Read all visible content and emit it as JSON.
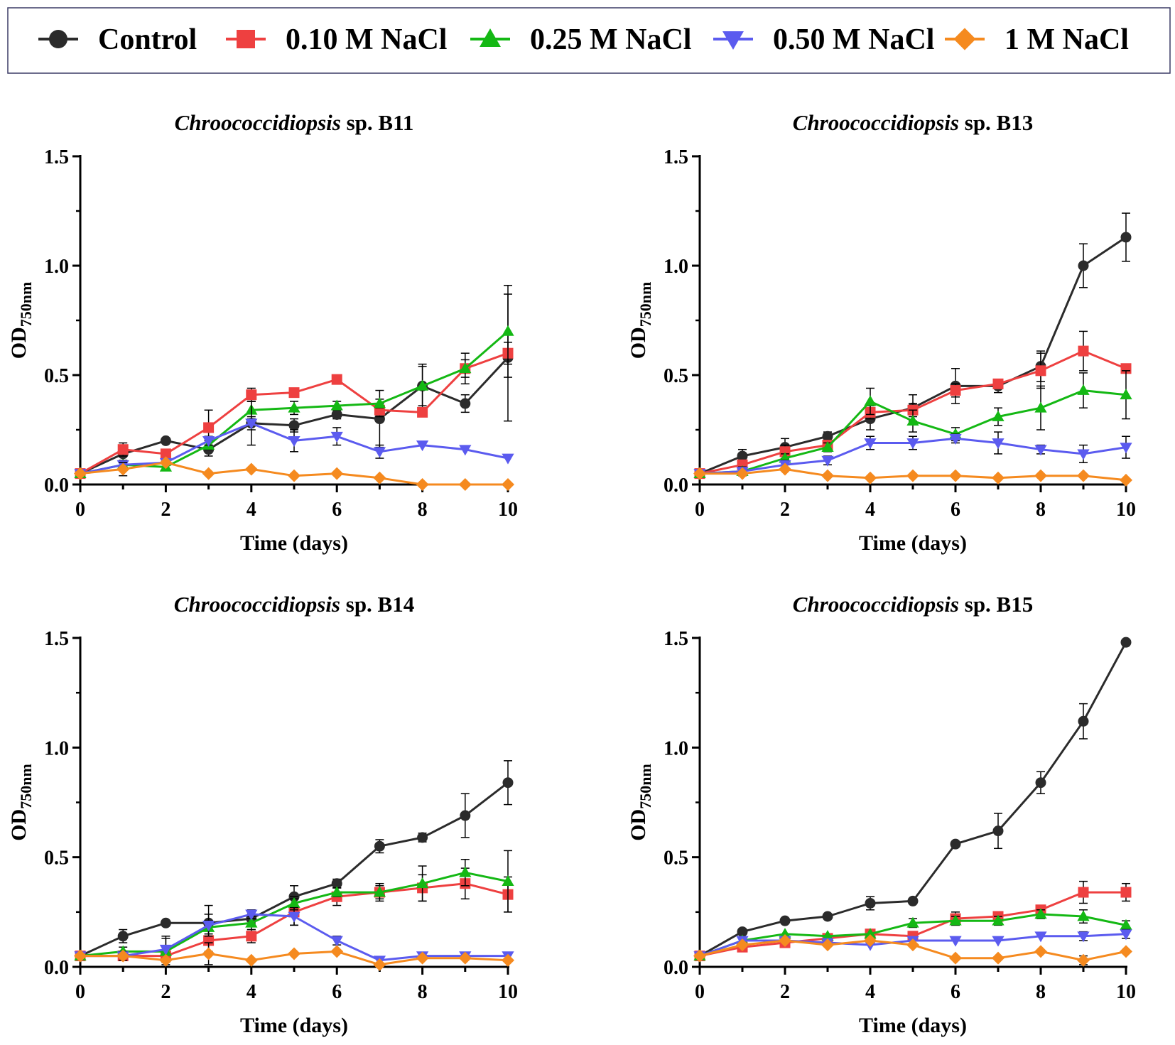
{
  "legend": [
    {
      "name": "Control",
      "color": "#2b2b2b",
      "marker": "circle"
    },
    {
      "name": "0.10 M NaCl",
      "color": "#ee4040",
      "marker": "square"
    },
    {
      "name": "0.25 M NaCl",
      "color": "#14b814",
      "marker": "triangle-up"
    },
    {
      "name": "0.50 M NaCl",
      "color": "#5b5bef",
      "marker": "triangle-down"
    },
    {
      "name": "1 M NaCl",
      "color": "#f58a1f",
      "marker": "diamond"
    }
  ],
  "chart_data": [
    {
      "type": "line",
      "title_italic": "Chroococcidiopsis",
      "title_rest": " sp. B11",
      "xlabel": "Time (days)",
      "ylabel_main": "OD",
      "ylabel_sub": "750nm",
      "xlim": [
        0,
        10
      ],
      "ylim": [
        0,
        1.5
      ],
      "xticks": [
        0,
        2,
        4,
        6,
        8,
        10
      ],
      "yticks": [
        "0.0",
        "0.5",
        "1.0",
        "1.5"
      ],
      "x": [
        0,
        1,
        2,
        3,
        4,
        5,
        6,
        7,
        8,
        9,
        10
      ],
      "series": [
        {
          "name": "Control",
          "values": [
            0.05,
            0.14,
            0.2,
            0.16,
            0.28,
            0.27,
            0.32,
            0.3,
            0.45,
            0.37,
            0.58
          ],
          "err": [
            0.01,
            0.03,
            0.01,
            0.03,
            0.03,
            0.03,
            0.02,
            0.13,
            0.1,
            0.04,
            0.29
          ]
        },
        {
          "name": "0.10 M NaCl",
          "values": [
            0.05,
            0.16,
            0.14,
            0.26,
            0.41,
            0.42,
            0.48,
            0.34,
            0.33,
            0.53,
            0.6
          ],
          "err": [
            0.01,
            0.03,
            0.02,
            0.08,
            0.03,
            0.02,
            0.02,
            0.03,
            0.02,
            0.07,
            0.05
          ]
        },
        {
          "name": "0.25 M NaCl",
          "values": [
            0.05,
            0.09,
            0.08,
            0.18,
            0.34,
            0.35,
            0.36,
            0.37,
            0.45,
            0.53,
            0.7
          ],
          "err": [
            0.01,
            0.02,
            0.01,
            0.02,
            0.04,
            0.03,
            0.02,
            0.02,
            0.09,
            0.04,
            0.21
          ]
        },
        {
          "name": "0.50 M NaCl",
          "values": [
            0.05,
            0.09,
            0.1,
            0.2,
            0.28,
            0.2,
            0.22,
            0.15,
            0.18,
            0.16,
            0.12
          ],
          "err": [
            0.01,
            0.02,
            0.01,
            0.02,
            0.1,
            0.05,
            0.04,
            0.03,
            0.01,
            0.01,
            0.01
          ]
        },
        {
          "name": "1 M NaCl",
          "values": [
            0.05,
            0.07,
            0.1,
            0.05,
            0.07,
            0.04,
            0.05,
            0.03,
            0.0,
            0.0,
            0.0
          ],
          "err": [
            0.01,
            0.03,
            0.01,
            0.01,
            0.01,
            0.01,
            0.01,
            0.01,
            0.0,
            0.0,
            0.0
          ]
        }
      ]
    },
    {
      "type": "line",
      "title_italic": "Chroococcidiopsis",
      "title_rest": " sp. B13",
      "xlabel": "Time (days)",
      "ylabel_main": "OD",
      "ylabel_sub": "750nm",
      "xlim": [
        0,
        10
      ],
      "ylim": [
        0,
        1.5
      ],
      "xticks": [
        0,
        2,
        4,
        6,
        8,
        10
      ],
      "yticks": [
        "0.0",
        "0.5",
        "1.0",
        "1.5"
      ],
      "x": [
        0,
        1,
        2,
        3,
        4,
        5,
        6,
        7,
        8,
        9,
        10
      ],
      "series": [
        {
          "name": "Control",
          "values": [
            0.05,
            0.13,
            0.17,
            0.22,
            0.3,
            0.35,
            0.45,
            0.45,
            0.54,
            1.0,
            1.13
          ],
          "err": [
            0.01,
            0.03,
            0.04,
            0.02,
            0.05,
            0.06,
            0.08,
            0.03,
            0.07,
            0.1,
            0.11
          ]
        },
        {
          "name": "0.10 M NaCl",
          "values": [
            0.05,
            0.09,
            0.15,
            0.18,
            0.33,
            0.34,
            0.43,
            0.46,
            0.52,
            0.61,
            0.53
          ],
          "err": [
            0.01,
            0.02,
            0.03,
            0.02,
            0.03,
            0.03,
            0.03,
            0.02,
            0.08,
            0.09,
            0.02
          ]
        },
        {
          "name": "0.25 M NaCl",
          "values": [
            0.05,
            0.06,
            0.12,
            0.17,
            0.38,
            0.29,
            0.23,
            0.31,
            0.35,
            0.43,
            0.41
          ],
          "err": [
            0.01,
            0.02,
            0.02,
            0.02,
            0.06,
            0.05,
            0.03,
            0.04,
            0.1,
            0.08,
            0.11
          ]
        },
        {
          "name": "0.50 M NaCl",
          "values": [
            0.05,
            0.06,
            0.09,
            0.11,
            0.19,
            0.19,
            0.21,
            0.19,
            0.16,
            0.14,
            0.17
          ],
          "err": [
            0.01,
            0.02,
            0.02,
            0.02,
            0.03,
            0.03,
            0.02,
            0.05,
            0.02,
            0.04,
            0.05
          ]
        },
        {
          "name": "1 M NaCl",
          "values": [
            0.05,
            0.05,
            0.07,
            0.04,
            0.03,
            0.04,
            0.04,
            0.03,
            0.04,
            0.04,
            0.02
          ],
          "err": [
            0.01,
            0.01,
            0.01,
            0.01,
            0.01,
            0.01,
            0.01,
            0.01,
            0.01,
            0.01,
            0.01
          ]
        }
      ]
    },
    {
      "type": "line",
      "title_italic": "Chroococcidiopsis",
      "title_rest": " sp. B14",
      "xlabel": "Time (days)",
      "ylabel_main": "OD",
      "ylabel_sub": "750nm",
      "xlim": [
        0,
        10
      ],
      "ylim": [
        0,
        1.5
      ],
      "xticks": [
        0,
        2,
        4,
        6,
        8,
        10
      ],
      "yticks": [
        "0.0",
        "0.5",
        "1.0",
        "1.5"
      ],
      "x": [
        0,
        1,
        2,
        3,
        4,
        5,
        6,
        7,
        8,
        9,
        10
      ],
      "series": [
        {
          "name": "Control",
          "values": [
            0.05,
            0.14,
            0.2,
            0.2,
            0.22,
            0.32,
            0.38,
            0.55,
            0.59,
            0.69,
            0.84
          ],
          "err": [
            0.01,
            0.03,
            0.01,
            0.08,
            0.02,
            0.05,
            0.02,
            0.03,
            0.02,
            0.1,
            0.1
          ]
        },
        {
          "name": "0.10 M NaCl",
          "values": [
            0.05,
            0.05,
            0.05,
            0.12,
            0.14,
            0.25,
            0.32,
            0.34,
            0.36,
            0.38,
            0.33
          ],
          "err": [
            0.01,
            0.01,
            0.02,
            0.05,
            0.03,
            0.06,
            0.04,
            0.04,
            0.06,
            0.07,
            0.08
          ]
        },
        {
          "name": "0.25 M NaCl",
          "values": [
            0.05,
            0.07,
            0.07,
            0.18,
            0.2,
            0.29,
            0.34,
            0.34,
            0.38,
            0.43,
            0.39
          ],
          "err": [
            0.01,
            0.02,
            0.06,
            0.03,
            0.03,
            0.03,
            0.02,
            0.03,
            0.08,
            0.06,
            0.14
          ]
        },
        {
          "name": "0.50 M NaCl",
          "values": [
            0.05,
            0.05,
            0.08,
            0.19,
            0.24,
            0.23,
            0.12,
            0.03,
            0.05,
            0.05,
            0.05
          ],
          "err": [
            0.01,
            0.02,
            0.06,
            0.05,
            0.02,
            0.04,
            0.02,
            0.01,
            0.01,
            0.01,
            0.01
          ]
        },
        {
          "name": "1 M NaCl",
          "values": [
            0.05,
            0.05,
            0.03,
            0.06,
            0.03,
            0.06,
            0.07,
            0.01,
            0.04,
            0.04,
            0.03
          ],
          "err": [
            0.01,
            0.01,
            0.01,
            0.05,
            0.01,
            0.01,
            0.01,
            0.01,
            0.01,
            0.01,
            0.01
          ]
        }
      ]
    },
    {
      "type": "line",
      "title_italic": "Chroococcidiopsis",
      "title_rest": " sp. B15",
      "xlabel": "Time (days)",
      "ylabel_main": "OD",
      "ylabel_sub": "750nm",
      "xlim": [
        0,
        10
      ],
      "ylim": [
        0,
        1.5
      ],
      "xticks": [
        0,
        2,
        4,
        6,
        8,
        10
      ],
      "yticks": [
        "0.0",
        "0.5",
        "1.0",
        "1.5"
      ],
      "x": [
        0,
        1,
        2,
        3,
        4,
        5,
        6,
        7,
        8,
        9,
        10
      ],
      "series": [
        {
          "name": "Control",
          "values": [
            0.05,
            0.16,
            0.21,
            0.23,
            0.29,
            0.3,
            0.56,
            0.62,
            0.84,
            1.12,
            1.48
          ],
          "err": [
            0.01,
            0.01,
            0.01,
            0.01,
            0.03,
            0.01,
            0.01,
            0.08,
            0.05,
            0.08,
            0.01
          ]
        },
        {
          "name": "0.10 M NaCl",
          "values": [
            0.05,
            0.09,
            0.11,
            0.13,
            0.15,
            0.14,
            0.22,
            0.23,
            0.26,
            0.34,
            0.34
          ],
          "err": [
            0.01,
            0.01,
            0.01,
            0.01,
            0.01,
            0.02,
            0.03,
            0.02,
            0.02,
            0.05,
            0.04
          ]
        },
        {
          "name": "0.25 M NaCl",
          "values": [
            0.05,
            0.12,
            0.15,
            0.14,
            0.15,
            0.2,
            0.21,
            0.21,
            0.24,
            0.23,
            0.19
          ],
          "err": [
            0.01,
            0.01,
            0.01,
            0.01,
            0.01,
            0.02,
            0.02,
            0.02,
            0.02,
            0.03,
            0.02
          ]
        },
        {
          "name": "0.50 M NaCl",
          "values": [
            0.05,
            0.12,
            0.12,
            0.11,
            0.1,
            0.12,
            0.12,
            0.12,
            0.14,
            0.14,
            0.15
          ],
          "err": [
            0.01,
            0.01,
            0.01,
            0.01,
            0.01,
            0.01,
            0.01,
            0.01,
            0.01,
            0.02,
            0.02
          ]
        },
        {
          "name": "1 M NaCl",
          "values": [
            0.05,
            0.1,
            0.12,
            0.1,
            0.12,
            0.1,
            0.04,
            0.04,
            0.07,
            0.03,
            0.07
          ],
          "err": [
            0.01,
            0.01,
            0.01,
            0.01,
            0.01,
            0.01,
            0.01,
            0.01,
            0.01,
            0.02,
            0.01
          ]
        }
      ]
    }
  ]
}
